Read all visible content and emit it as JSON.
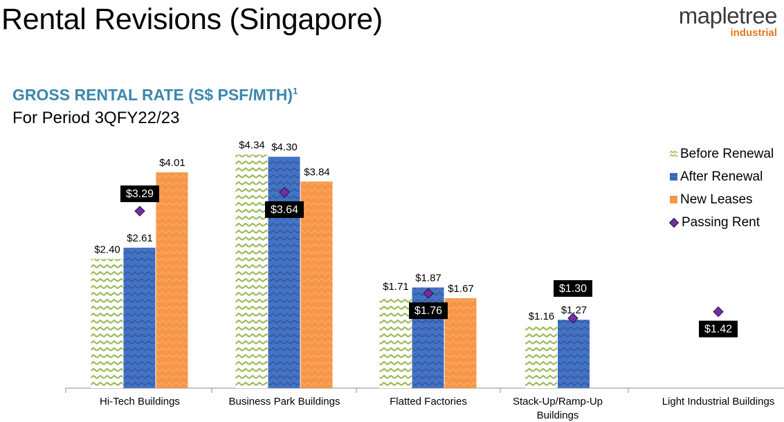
{
  "page": {
    "title": "Rental Revisions (Singapore)"
  },
  "logo": {
    "word": "mapletree",
    "sub": "industrial"
  },
  "chart_data": {
    "type": "bar",
    "title": "GROSS RENTAL RATE (S$ PSF/MTH)",
    "title_footnote": "1",
    "subtitle": "For Period 3QFY22/23",
    "categories": [
      "Hi-Tech Buildings",
      "Business Park Buildings",
      "Flatted Factories",
      "Stack-Up/Ramp-Up Buildings",
      "Light Industrial Buildings"
    ],
    "series": [
      {
        "name": "Before Renewal",
        "kind": "bar",
        "values": [
          2.4,
          4.34,
          1.71,
          1.16,
          null
        ],
        "labels": [
          "$2.40",
          "$4.34",
          "$1.71",
          "$1.16",
          null
        ]
      },
      {
        "name": "After Renewal",
        "kind": "bar",
        "values": [
          2.61,
          4.3,
          1.87,
          1.27,
          null
        ],
        "labels": [
          "$2.61",
          "$4.30",
          "$1.87",
          "$1.27",
          null
        ]
      },
      {
        "name": "New Leases",
        "kind": "bar",
        "values": [
          4.01,
          3.84,
          1.67,
          null,
          null
        ],
        "labels": [
          "$4.01",
          "$3.84",
          "$1.67",
          null,
          null
        ]
      },
      {
        "name": "Passing Rent",
        "kind": "marker",
        "values": [
          3.29,
          3.64,
          1.76,
          1.3,
          1.42
        ],
        "labels": [
          "$3.29",
          "$3.64",
          "$1.76",
          "$1.30",
          "$1.42"
        ]
      }
    ],
    "ylim": [
      0,
      4.5
    ],
    "grid": false,
    "legend_position": "right",
    "colors": {
      "before_renewal": "#9bbb59",
      "after_renewal": "#4472c4",
      "new_leases": "#f79646",
      "passing_rent": "#7030a0",
      "label_box": "#000000"
    }
  }
}
